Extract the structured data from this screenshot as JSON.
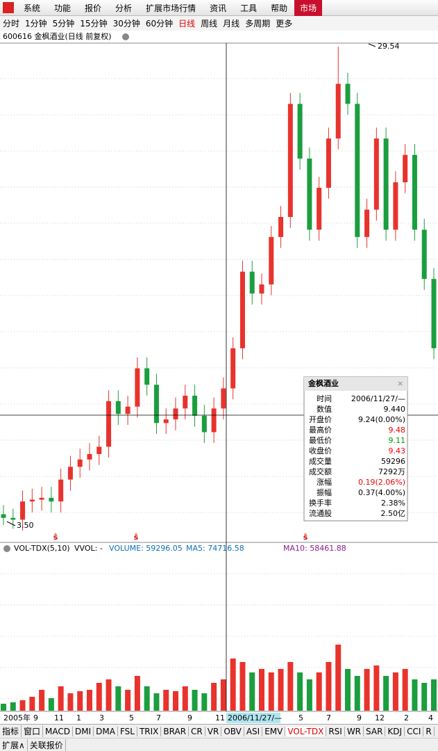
{
  "menu": {
    "items": [
      "系统",
      "功能",
      "报价",
      "分析",
      "扩展市场行情",
      "资讯",
      "工具",
      "帮助"
    ],
    "active": "市场"
  },
  "periods": {
    "items": [
      "分时",
      "1分钟",
      "5分钟",
      "15分钟",
      "30分钟",
      "60分钟",
      "日线",
      "周线",
      "月线",
      "多周期",
      "更多"
    ],
    "selected": 6
  },
  "chart_data": {
    "type": "candlestick",
    "title": "600616 金枫酒业(日线 前复权)",
    "ylim": [
      {
        "value": 3.5,
        "label": "3.50"
      },
      29.54
    ],
    "candles": [
      [
        3.9,
        4.4,
        3.3,
        3.7
      ],
      [
        3.7,
        4.2,
        3.1,
        3.6
      ],
      [
        3.6,
        5.2,
        3.0,
        4.6
      ],
      [
        4.6,
        5.3,
        4.0,
        4.7
      ],
      [
        4.7,
        5.4,
        4.1,
        4.8
      ],
      [
        4.8,
        5.4,
        4.0,
        4.6
      ],
      [
        4.6,
        6.4,
        4.0,
        5.8
      ],
      [
        5.8,
        7.1,
        5.2,
        6.5
      ],
      [
        6.5,
        7.5,
        5.9,
        6.9
      ],
      [
        6.9,
        7.8,
        6.3,
        7.2
      ],
      [
        7.2,
        8.2,
        6.6,
        7.6
      ],
      [
        7.6,
        10.7,
        7.0,
        10.1
      ],
      [
        10.1,
        10.7,
        8.8,
        9.4
      ],
      [
        9.4,
        10.4,
        8.8,
        9.8
      ],
      [
        9.8,
        12.5,
        9.2,
        11.9
      ],
      [
        11.9,
        12.5,
        10.4,
        11.0
      ],
      [
        11.0,
        11.6,
        8.3,
        8.9
      ],
      [
        8.9,
        9.7,
        8.3,
        9.1
      ],
      [
        9.1,
        10.3,
        8.5,
        9.7
      ],
      [
        9.7,
        11.0,
        9.1,
        10.4
      ],
      [
        10.4,
        11.0,
        8.7,
        9.3
      ],
      [
        9.3,
        9.9,
        7.8,
        8.4
      ],
      [
        8.4,
        10.3,
        7.8,
        9.7
      ],
      [
        9.7,
        11.4,
        9.1,
        10.8
      ],
      [
        10.8,
        13.6,
        10.2,
        13.0
      ],
      [
        13.0,
        17.8,
        12.4,
        17.2
      ],
      [
        17.2,
        17.8,
        15.4,
        16.0
      ],
      [
        16.0,
        17.1,
        15.4,
        16.5
      ],
      [
        16.5,
        19.7,
        15.9,
        19.1
      ],
      [
        19.1,
        20.8,
        18.5,
        20.2
      ],
      [
        20.2,
        27.0,
        19.6,
        26.4
      ],
      [
        26.4,
        27.0,
        22.8,
        23.4
      ],
      [
        23.4,
        24.0,
        18.9,
        19.5
      ],
      [
        19.5,
        22.4,
        18.9,
        21.8
      ],
      [
        21.8,
        25.1,
        21.2,
        24.5
      ],
      [
        24.5,
        29.54,
        23.9,
        27.5
      ],
      [
        27.5,
        28.1,
        25.8,
        26.4
      ],
      [
        26.4,
        27.0,
        18.5,
        19.1
      ],
      [
        19.1,
        21.2,
        18.5,
        20.6
      ],
      [
        20.6,
        25.1,
        20.0,
        24.5
      ],
      [
        24.5,
        25.1,
        18.9,
        19.5
      ],
      [
        19.5,
        22.7,
        18.9,
        22.1
      ],
      [
        22.1,
        24.2,
        21.5,
        23.6
      ],
      [
        23.6,
        24.2,
        18.9,
        19.5
      ],
      [
        19.5,
        20.1,
        16.2,
        16.8
      ],
      [
        16.8,
        17.4,
        12.4,
        13.0
      ]
    ],
    "markers": [
      "ŝ",
      "ŝ",
      "ŝ"
    ],
    "volume": {
      "title": "VOL-TDX(5,10)",
      "vvol": "VVOL: -",
      "indicators": [
        "VOLUME: 59296.05",
        "MA5: 74716.58",
        "MA10: 58461.88"
      ],
      "ylim": [
        0,
        220000
      ],
      "values": [
        10000,
        12000,
        15000,
        20000,
        30000,
        18000,
        35000,
        25000,
        28000,
        30000,
        40000,
        45000,
        35000,
        30000,
        50000,
        35000,
        25000,
        30000,
        28000,
        35000,
        30000,
        25000,
        40000,
        45000,
        75000,
        70000,
        55000,
        60000,
        55000,
        60000,
        70000,
        55000,
        45000,
        55000,
        70000,
        95000,
        60000,
        50000,
        60000,
        65000,
        50000,
        55000,
        60000,
        45000,
        40000,
        45000
      ]
    },
    "x_labels": [
      "2005年",
      "9",
      "11",
      "1",
      "3",
      "5",
      "7",
      "9",
      "11",
      "2006/11/27/—",
      "5",
      "7",
      "9",
      "12",
      "2",
      "4"
    ]
  },
  "popup": {
    "title": "金枫酒业",
    "rows": [
      [
        "时间",
        "2006/11/27/—"
      ],
      [
        "数值",
        "9.440"
      ],
      [
        "开盘价",
        "9.24(0.00%)"
      ],
      [
        "最高价",
        "9.48"
      ],
      [
        "最低价",
        "9.11"
      ],
      [
        "收盘价",
        "9.43"
      ],
      [
        "成交量",
        "59296"
      ],
      [
        "成交额",
        "7292万"
      ],
      [
        "涨幅",
        "0.19(2.06%)"
      ],
      [
        "振幅",
        "0.37(4.00%)"
      ],
      [
        "换手率",
        "2.38%"
      ],
      [
        "流通股",
        "2.50亿"
      ]
    ]
  },
  "tabs": [
    "指标",
    "窗口",
    "MACD",
    "DMI",
    "DMA",
    "FSL",
    "TRIX",
    "BRAR",
    "CR",
    "VR",
    "OBV",
    "ASI",
    "EMV",
    "VOL-TDX",
    "RSI",
    "WR",
    "SAR",
    "KDJ",
    "CCI",
    "R"
  ],
  "footer": [
    "扩展∧",
    "关联报价"
  ]
}
